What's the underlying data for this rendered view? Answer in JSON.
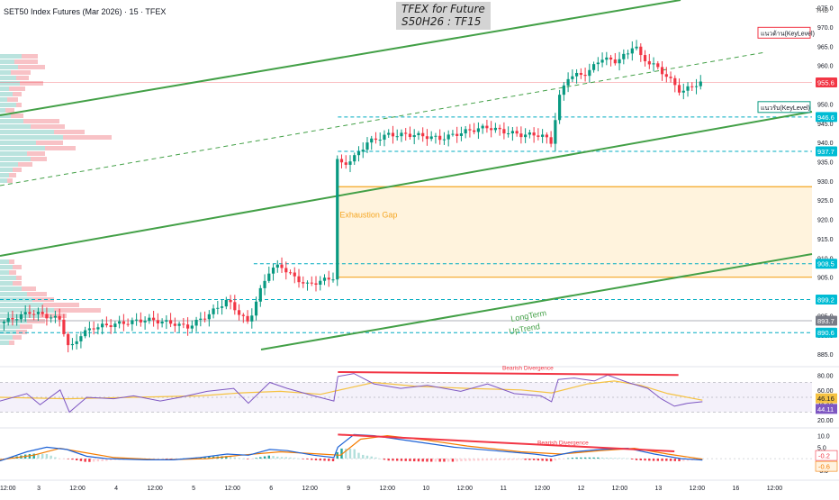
{
  "header": {
    "symbol_line": "SET50 Index Futures (Mar 2026) · 15 · TFEX",
    "title_line1": "TFEX for Future",
    "title_line2": "S50H26 : TF15",
    "currency": "THB"
  },
  "chart_data": [
    {
      "type": "candlestick",
      "panel": "price",
      "y_ticks": [
        "975.0",
        "970.0",
        "965.0",
        "960.0",
        "955.0",
        "950.0",
        "945.0",
        "940.0",
        "935.0",
        "930.0",
        "925.0",
        "920.0",
        "915.0",
        "910.0",
        "905.0",
        "900.0",
        "895.0",
        "890.0",
        "885.0"
      ],
      "ylim": [
        882,
        977
      ],
      "x_ticks": [
        "12:00",
        "3",
        "12:00",
        "4",
        "12:00",
        "5",
        "12:00",
        "6",
        "12:00",
        "9",
        "12:00",
        "10",
        "12:00",
        "11",
        "12:00",
        "12",
        "12:00",
        "13",
        "12:00",
        "16",
        "12:00"
      ],
      "price_labels": [
        {
          "value": 955.6,
          "text": "955.6",
          "color": "#f23645"
        },
        {
          "value": 946.6,
          "text": "946.6",
          "color": "#00bcd4"
        },
        {
          "value": 937.7,
          "text": "937.7",
          "color": "#00bcd4"
        },
        {
          "value": 908.5,
          "text": "908.5",
          "color": "#00bcd4"
        },
        {
          "value": 899.2,
          "text": "899.2",
          "color": "#00bcd4"
        },
        {
          "value": 893.7,
          "text": "893.7",
          "color": "#787b86"
        },
        {
          "value": 890.6,
          "text": "890.6",
          "color": "#00bcd4"
        }
      ],
      "key_levels": [
        {
          "text": "แนวต้าน(KeyLevel)",
          "value": 968.5,
          "color": "#f23645"
        },
        {
          "text": "แนวรับ(KeyLevel)",
          "value": 949.2,
          "color": "#089981"
        }
      ],
      "annotations": [
        "Exhaustion Gap",
        "LongTerm",
        "UpTrend"
      ],
      "gap_zone": [
        905.0,
        928.5
      ],
      "horizontal_levels": [
        946.6,
        937.7,
        908.5,
        899.2,
        890.6
      ],
      "close_path": [
        {
          "t": 0.0,
          "v": 893
        },
        {
          "t": 2.3,
          "v": 896
        },
        {
          "t": 4.5,
          "v": 894
        },
        {
          "t": 5.2,
          "v": 886
        },
        {
          "t": 6.0,
          "v": 890
        },
        {
          "t": 7.0,
          "v": 892
        },
        {
          "t": 9.0,
          "v": 893
        },
        {
          "t": 11.0,
          "v": 894
        },
        {
          "t": 13.0,
          "v": 893
        },
        {
          "t": 14.0,
          "v": 892
        },
        {
          "t": 15.5,
          "v": 895
        },
        {
          "t": 17.0,
          "v": 899
        },
        {
          "t": 18.6,
          "v": 893
        },
        {
          "t": 19.3,
          "v": 900
        },
        {
          "t": 20.2,
          "v": 907
        },
        {
          "t": 21.0,
          "v": 908
        },
        {
          "t": 22.0,
          "v": 905
        },
        {
          "t": 23.0,
          "v": 903
        },
        {
          "t": 24.0,
          "v": 904
        },
        {
          "t": 25.0,
          "v": 905
        },
        {
          "t": 25.3,
          "v": 940
        },
        {
          "t": 25.6,
          "v": 934
        },
        {
          "t": 26.5,
          "v": 936
        },
        {
          "t": 27.5,
          "v": 940
        },
        {
          "t": 29.0,
          "v": 942
        },
        {
          "t": 31.0,
          "v": 942
        },
        {
          "t": 33.0,
          "v": 941
        },
        {
          "t": 35.0,
          "v": 943
        },
        {
          "t": 36.5,
          "v": 944
        },
        {
          "t": 37.5,
          "v": 943
        },
        {
          "t": 39.0,
          "v": 942
        },
        {
          "t": 40.5,
          "v": 942
        },
        {
          "t": 41.3,
          "v": 940
        },
        {
          "t": 41.8,
          "v": 951
        },
        {
          "t": 42.5,
          "v": 957
        },
        {
          "t": 44.0,
          "v": 958
        },
        {
          "t": 45.0,
          "v": 962
        },
        {
          "t": 46.0,
          "v": 961
        },
        {
          "t": 47.0,
          "v": 963
        },
        {
          "t": 47.5,
          "v": 966
        },
        {
          "t": 48.0,
          "v": 962
        },
        {
          "t": 49.0,
          "v": 960
        },
        {
          "t": 50.0,
          "v": 957
        },
        {
          "t": 51.0,
          "v": 953
        },
        {
          "t": 52.0,
          "v": 955
        },
        {
          "t": 52.6,
          "v": 955.6
        }
      ]
    },
    {
      "type": "line",
      "panel": "rsi",
      "y_ticks": [
        "80.00",
        "60.00",
        "40.00",
        "20.00"
      ],
      "ylim": [
        10,
        90
      ],
      "value_labels": [
        {
          "text": "46.16",
          "color": "#f5c242"
        },
        {
          "text": "44.11",
          "color": "#7e57c2"
        }
      ],
      "annotation": "Bearish Divergence",
      "rsi_path": [
        {
          "t": 0,
          "v": 45
        },
        {
          "t": 2,
          "v": 55
        },
        {
          "t": 3,
          "v": 40
        },
        {
          "t": 4.5,
          "v": 60
        },
        {
          "t": 5.2,
          "v": 30
        },
        {
          "t": 6.5,
          "v": 50
        },
        {
          "t": 8.5,
          "v": 48
        },
        {
          "t": 10,
          "v": 52
        },
        {
          "t": 12,
          "v": 45
        },
        {
          "t": 13.5,
          "v": 50
        },
        {
          "t": 15.5,
          "v": 58
        },
        {
          "t": 17.5,
          "v": 62
        },
        {
          "t": 18.6,
          "v": 42
        },
        {
          "t": 20.2,
          "v": 70
        },
        {
          "t": 21.5,
          "v": 62
        },
        {
          "t": 23.5,
          "v": 52
        },
        {
          "t": 25.0,
          "v": 45
        },
        {
          "t": 25.3,
          "v": 78
        },
        {
          "t": 26.5,
          "v": 82
        },
        {
          "t": 28.0,
          "v": 68
        },
        {
          "t": 30.0,
          "v": 62
        },
        {
          "t": 32.0,
          "v": 66
        },
        {
          "t": 34.5,
          "v": 58
        },
        {
          "t": 36.5,
          "v": 68
        },
        {
          "t": 38.5,
          "v": 55
        },
        {
          "t": 40.5,
          "v": 52
        },
        {
          "t": 41.3,
          "v": 44
        },
        {
          "t": 41.8,
          "v": 74
        },
        {
          "t": 43.0,
          "v": 76
        },
        {
          "t": 44.5,
          "v": 72
        },
        {
          "t": 45.5,
          "v": 80
        },
        {
          "t": 47.0,
          "v": 70
        },
        {
          "t": 48.5,
          "v": 62
        },
        {
          "t": 49.5,
          "v": 48
        },
        {
          "t": 50.5,
          "v": 38
        },
        {
          "t": 51.5,
          "v": 42
        },
        {
          "t": 52.6,
          "v": 44.11
        }
      ],
      "ma_path": [
        {
          "t": 0,
          "v": 50
        },
        {
          "t": 5,
          "v": 48
        },
        {
          "t": 10,
          "v": 50
        },
        {
          "t": 15,
          "v": 52
        },
        {
          "t": 18,
          "v": 56
        },
        {
          "t": 21,
          "v": 58
        },
        {
          "t": 24,
          "v": 54
        },
        {
          "t": 26,
          "v": 62
        },
        {
          "t": 28,
          "v": 70
        },
        {
          "t": 31,
          "v": 65
        },
        {
          "t": 35,
          "v": 62
        },
        {
          "t": 39,
          "v": 60
        },
        {
          "t": 41.3,
          "v": 56
        },
        {
          "t": 44,
          "v": 68
        },
        {
          "t": 46,
          "v": 72
        },
        {
          "t": 48,
          "v": 66
        },
        {
          "t": 50,
          "v": 55
        },
        {
          "t": 52.6,
          "v": 46.16
        }
      ]
    },
    {
      "type": "bar+line",
      "panel": "macd",
      "y_ticks": [
        "10.0",
        "5.0",
        "-5.0"
      ],
      "ylim": [
        -9,
        13
      ],
      "value_labels": [
        {
          "text": "-0.2",
          "color": "#f23645"
        },
        {
          "text": "-0.6",
          "color": "#f57c00"
        }
      ],
      "annotation": "Bearish Divergence",
      "macd_path": [
        {
          "t": 0,
          "v": -1
        },
        {
          "t": 2,
          "v": 3
        },
        {
          "t": 3.5,
          "v": 5
        },
        {
          "t": 5,
          "v": 4
        },
        {
          "t": 6.5,
          "v": 1
        },
        {
          "t": 8,
          "v": 0
        },
        {
          "t": 11,
          "v": -0.5
        },
        {
          "t": 13,
          "v": -0.5
        },
        {
          "t": 15,
          "v": 0.5
        },
        {
          "t": 17,
          "v": 2
        },
        {
          "t": 18.6,
          "v": 1.5
        },
        {
          "t": 20.2,
          "v": 4
        },
        {
          "t": 21.5,
          "v": 3.5
        },
        {
          "t": 23.5,
          "v": 1.5
        },
        {
          "t": 25.0,
          "v": 0.5
        },
        {
          "t": 25.3,
          "v": 5
        },
        {
          "t": 26.5,
          "v": 10.5
        },
        {
          "t": 28,
          "v": 10
        },
        {
          "t": 31,
          "v": 7.5
        },
        {
          "t": 34,
          "v": 5
        },
        {
          "t": 37,
          "v": 3.5
        },
        {
          "t": 40,
          "v": 2
        },
        {
          "t": 41.3,
          "v": 1
        },
        {
          "t": 43,
          "v": 3
        },
        {
          "t": 45,
          "v": 4
        },
        {
          "t": 47,
          "v": 4.5
        },
        {
          "t": 49,
          "v": 2
        },
        {
          "t": 51,
          "v": 0
        },
        {
          "t": 52.6,
          "v": -0.6
        }
      ],
      "signal_path": [
        {
          "t": 0,
          "v": -0.5
        },
        {
          "t": 2.5,
          "v": 1.5
        },
        {
          "t": 4.5,
          "v": 4.5
        },
        {
          "t": 6,
          "v": 3
        },
        {
          "t": 8.5,
          "v": 0.5
        },
        {
          "t": 12,
          "v": -0.5
        },
        {
          "t": 15.5,
          "v": 0
        },
        {
          "t": 18,
          "v": 1.5
        },
        {
          "t": 21,
          "v": 3
        },
        {
          "t": 24,
          "v": 2
        },
        {
          "t": 25.5,
          "v": 1.5
        },
        {
          "t": 27,
          "v": 8.5
        },
        {
          "t": 29,
          "v": 10
        },
        {
          "t": 32,
          "v": 8
        },
        {
          "t": 35,
          "v": 5.5
        },
        {
          "t": 39,
          "v": 3
        },
        {
          "t": 42,
          "v": 2
        },
        {
          "t": 45,
          "v": 3.5
        },
        {
          "t": 47.5,
          "v": 4.5
        },
        {
          "t": 50,
          "v": 2
        },
        {
          "t": 52.6,
          "v": -0.2
        }
      ]
    }
  ]
}
